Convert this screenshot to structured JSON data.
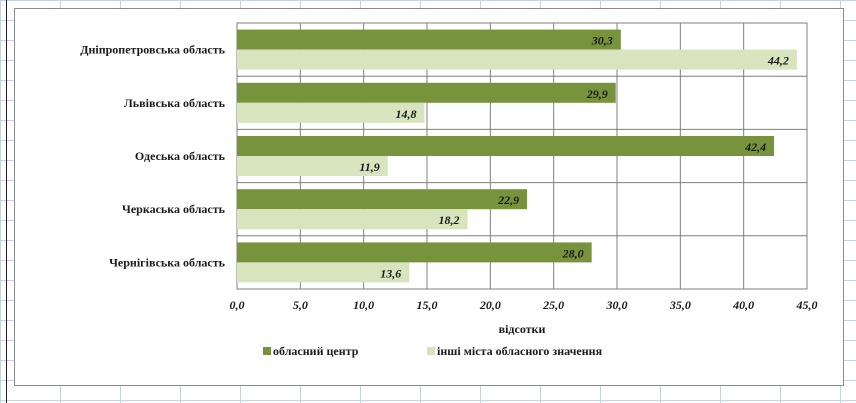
{
  "chart_data": {
    "type": "bar",
    "orientation": "horizontal",
    "categories": [
      "Дніпропетровська область",
      "Львівська область",
      "Одеська область",
      "Черкаська область",
      "Чернігівська область"
    ],
    "series": [
      {
        "name": "обласний центр",
        "values": [
          30.3,
          29.9,
          42.4,
          22.9,
          28.0
        ],
        "labels": [
          "30,3",
          "29,9",
          "42,4",
          "22,9",
          "28,0"
        ],
        "color": "#77933c"
      },
      {
        "name": "інші міста обласного значення",
        "values": [
          44.2,
          14.8,
          11.9,
          18.2,
          13.6
        ],
        "labels": [
          "44,2",
          "14,8",
          "11,9",
          "18,2",
          "13,6"
        ],
        "color": "#d7e4bd"
      }
    ],
    "xlabel": "відсотки",
    "xlim": [
      0,
      45
    ],
    "xticks": [
      "0,0",
      "5,0",
      "10,0",
      "15,0",
      "20,0",
      "25,0",
      "30,0",
      "35,0",
      "40,0",
      "45,0"
    ],
    "grid": true,
    "legend_position": "bottom"
  },
  "colors": {
    "series_dark": "#77933c",
    "series_light": "#d7e4bd",
    "gridline": "#7f7f7f"
  }
}
